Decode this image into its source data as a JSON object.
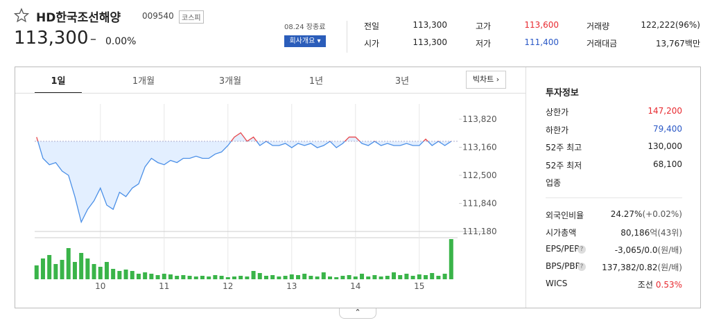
{
  "header": {
    "name": "HD한국조선해양",
    "code": "009540",
    "market": "코스피",
    "price": "113,300",
    "change": "–",
    "change_rate": "0.00%",
    "status": "08.24 장종료",
    "company_button": "회사개요"
  },
  "quote": [
    {
      "label": "전일",
      "value": "113,300",
      "tone": "plain"
    },
    {
      "label": "시가",
      "value": "113,300",
      "tone": "plain"
    },
    {
      "label": "고가",
      "value": "113,600",
      "tone": "up"
    },
    {
      "label": "저가",
      "value": "111,400",
      "tone": "down"
    },
    {
      "label": "거래량",
      "value": "122,222(96%)",
      "tone": "plain"
    },
    {
      "label": "거래대금",
      "value": "13,767백만",
      "tone": "plain"
    }
  ],
  "tabs": [
    "1일",
    "1개월",
    "3개월",
    "1년",
    "3년"
  ],
  "big_chart": "빅차트",
  "invest": {
    "title": "투자정보",
    "rows": [
      {
        "label": "상한가",
        "value": "147,200",
        "tone": "up"
      },
      {
        "label": "하한가",
        "value": "79,400",
        "tone": "down"
      },
      {
        "label": "52주 최고",
        "value": "130,000",
        "tone": "plain"
      },
      {
        "label": "52주 최저",
        "value": "68,100",
        "tone": "plain"
      },
      {
        "label": "업종",
        "value": "",
        "tone": "plain"
      }
    ],
    "rows2": [
      {
        "label": "외국인비율",
        "value": "24.27%",
        "note": "(+0.02%)",
        "tone": "plain"
      },
      {
        "label": "시가총액",
        "value": "80,186",
        "note": "억(43위)",
        "tone": "plain"
      },
      {
        "label": "EPS/PER",
        "value": "-3,065/0.0",
        "note": "(원/배)",
        "tone": "plain",
        "help": "?"
      },
      {
        "label": "BPS/PBR",
        "value": "137,382/0.82",
        "note": "(원/배)",
        "tone": "plain",
        "help": "?"
      },
      {
        "label": "WICS",
        "value": "조선",
        "note": "0.53%",
        "tone": "up"
      }
    ]
  },
  "chart_data": [
    {
      "type": "line",
      "baseline": 113300,
      "color": "#4a8fe7",
      "up_color": "#e8474b",
      "fill": "#e3efff",
      "x": [
        9.0,
        9.1,
        9.2,
        9.3,
        9.4,
        9.5,
        9.6,
        9.7,
        9.8,
        9.9,
        10.0,
        10.1,
        10.2,
        10.3,
        10.4,
        10.5,
        10.6,
        10.7,
        10.8,
        10.9,
        11.0,
        11.1,
        11.2,
        11.3,
        11.4,
        11.5,
        11.6,
        11.7,
        11.8,
        11.9,
        12.0,
        12.1,
        12.2,
        12.3,
        12.4,
        12.5,
        12.6,
        12.7,
        12.8,
        12.9,
        13.0,
        13.1,
        13.2,
        13.3,
        13.4,
        13.5,
        13.6,
        13.7,
        13.8,
        13.9,
        14.0,
        14.1,
        14.2,
        14.3,
        14.4,
        14.5,
        14.6,
        14.7,
        14.8,
        14.9,
        15.0,
        15.1,
        15.2,
        15.3,
        15.4,
        15.5
      ],
      "values": [
        113400,
        112900,
        112750,
        112800,
        112600,
        112500,
        112000,
        111400,
        111700,
        111900,
        112200,
        111800,
        111700,
        112100,
        112000,
        112200,
        112300,
        112700,
        112900,
        112800,
        112750,
        112850,
        112800,
        112900,
        112900,
        112950,
        112900,
        112900,
        113000,
        113050,
        113200,
        113400,
        113500,
        113300,
        113400,
        113200,
        113300,
        113200,
        113200,
        113250,
        113150,
        113250,
        113200,
        113250,
        113150,
        113200,
        113300,
        113150,
        113250,
        113400,
        113400,
        113250,
        113200,
        113300,
        113200,
        113250,
        113200,
        113200,
        113250,
        113200,
        113200,
        113350,
        113200,
        113300,
        113200,
        113300
      ],
      "xlim": [
        8.97,
        15.6
      ],
      "ylim": [
        111180,
        113820
      ],
      "yticks": [
        {
          "value": 113820,
          "label": "113,820"
        },
        {
          "value": 113160,
          "label": "113,160"
        },
        {
          "value": 112500,
          "label": "112,500"
        },
        {
          "value": 111840,
          "label": "111,840"
        },
        {
          "value": 111180,
          "label": "111,180"
        }
      ]
    },
    {
      "type": "bar",
      "color": "#3ab449",
      "x": [
        9.0,
        9.1,
        9.2,
        9.3,
        9.4,
        9.5,
        9.6,
        9.7,
        9.8,
        9.9,
        10.0,
        10.1,
        10.2,
        10.3,
        10.4,
        10.5,
        10.6,
        10.7,
        10.8,
        10.9,
        11.0,
        11.1,
        11.2,
        11.3,
        11.4,
        11.5,
        11.6,
        11.7,
        11.8,
        11.9,
        12.0,
        12.1,
        12.2,
        12.3,
        12.4,
        12.5,
        12.6,
        12.7,
        12.8,
        12.9,
        13.0,
        13.1,
        13.2,
        13.3,
        13.4,
        13.5,
        13.6,
        13.7,
        13.8,
        13.9,
        14.0,
        14.1,
        14.2,
        14.3,
        14.4,
        14.5,
        14.6,
        14.7,
        14.8,
        14.9,
        15.0,
        15.1,
        15.2,
        15.3,
        15.4,
        15.5
      ],
      "values": [
        20,
        30,
        35,
        22,
        28,
        45,
        25,
        38,
        30,
        22,
        18,
        25,
        15,
        12,
        14,
        12,
        8,
        10,
        8,
        6,
        8,
        7,
        5,
        6,
        5,
        4,
        5,
        4,
        6,
        5,
        3,
        4,
        5,
        4,
        12,
        9,
        5,
        6,
        4,
        5,
        7,
        6,
        8,
        5,
        4,
        10,
        4,
        3,
        5,
        6,
        4,
        8,
        4,
        6,
        4,
        5,
        10,
        6,
        8,
        5,
        7,
        6,
        9,
        5,
        8,
        58
      ],
      "xlim": [
        8.97,
        15.6
      ],
      "ylim": [
        0,
        60
      ],
      "xticks": [
        10,
        11,
        12,
        13,
        14,
        15
      ]
    }
  ]
}
